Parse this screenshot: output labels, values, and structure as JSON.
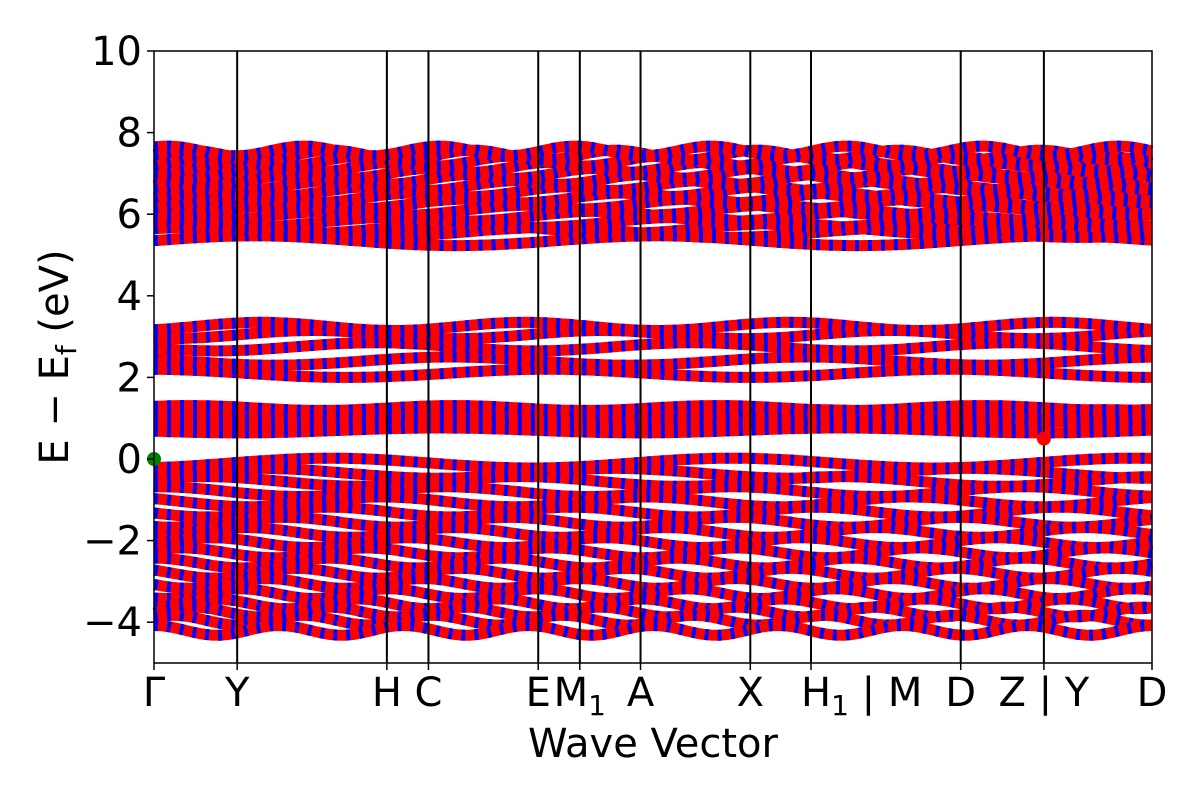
{
  "chart_data": {
    "type": "line",
    "title": "",
    "xlabel": "Wave Vector",
    "ylabel": "E − E_f (eV)",
    "ylabel_parts": {
      "main": "E − E",
      "sub": "f",
      "unit": " (eV)"
    },
    "ylim": [
      -5,
      10
    ],
    "yticks": [
      -4,
      -2,
      0,
      2,
      4,
      6,
      8,
      10
    ],
    "ytick_labels": [
      "−4",
      "−2",
      "0",
      "2",
      "4",
      "6",
      "8",
      "10"
    ],
    "xlim": [
      0,
      12
    ],
    "kpath": [
      {
        "x": 0.0,
        "label": "Γ"
      },
      {
        "x": 1.0,
        "label": "Y"
      },
      {
        "x": 2.8,
        "label": "H"
      },
      {
        "x": 3.3,
        "label": "C"
      },
      {
        "x": 4.62,
        "label": "E"
      },
      {
        "x": 5.12,
        "label": "M",
        "sub": "1"
      },
      {
        "x": 5.85,
        "label": "A"
      },
      {
        "x": 7.17,
        "label": "X"
      },
      {
        "x": 7.9,
        "label": "H",
        "sub": "1",
        "suffix": " | M"
      },
      {
        "x": 9.7,
        "label": "D"
      },
      {
        "x": 10.7,
        "label": "Z | Y"
      },
      {
        "x": 12.0,
        "label": "D"
      }
    ],
    "series": [
      {
        "role": "spin-up",
        "color": "#0000ff"
      },
      {
        "role": "spin-down",
        "color": "#ff0000"
      }
    ],
    "band_groups": [
      {
        "role": "upper conduction",
        "energies": [
          5.35,
          5.55,
          5.65,
          5.8,
          5.95,
          6.1,
          6.25,
          6.4,
          6.55,
          6.7,
          6.85,
          7.0,
          7.15,
          7.3,
          7.45,
          7.55
        ],
        "amplitude": 0.12
      },
      {
        "role": "middle conduction",
        "energies": [
          2.1,
          2.4,
          2.75,
          3.05,
          3.25
        ],
        "amplitude": 0.1
      },
      {
        "role": "lower conduction",
        "energies": [
          0.7,
          0.85,
          1.0,
          1.15,
          1.25
        ],
        "amplitude": 0.06
      },
      {
        "role": "valence",
        "energies": [
          -0.1,
          -0.35,
          -0.55,
          -0.8,
          -1.05,
          -1.3,
          -1.55,
          -1.8,
          -2.05,
          -2.3,
          -2.55,
          -2.8,
          -3.05,
          -3.3,
          -3.55,
          -3.75,
          -3.95,
          -4.2
        ],
        "amplitude": 0.12
      }
    ],
    "markers": [
      {
        "x": 0.0,
        "y": 0.0,
        "color": "#008000",
        "role": "VBM"
      },
      {
        "x": 10.7,
        "y": 0.5,
        "color": "#ff0000",
        "role": "CBM"
      }
    ],
    "grid": false,
    "legend": "none"
  }
}
